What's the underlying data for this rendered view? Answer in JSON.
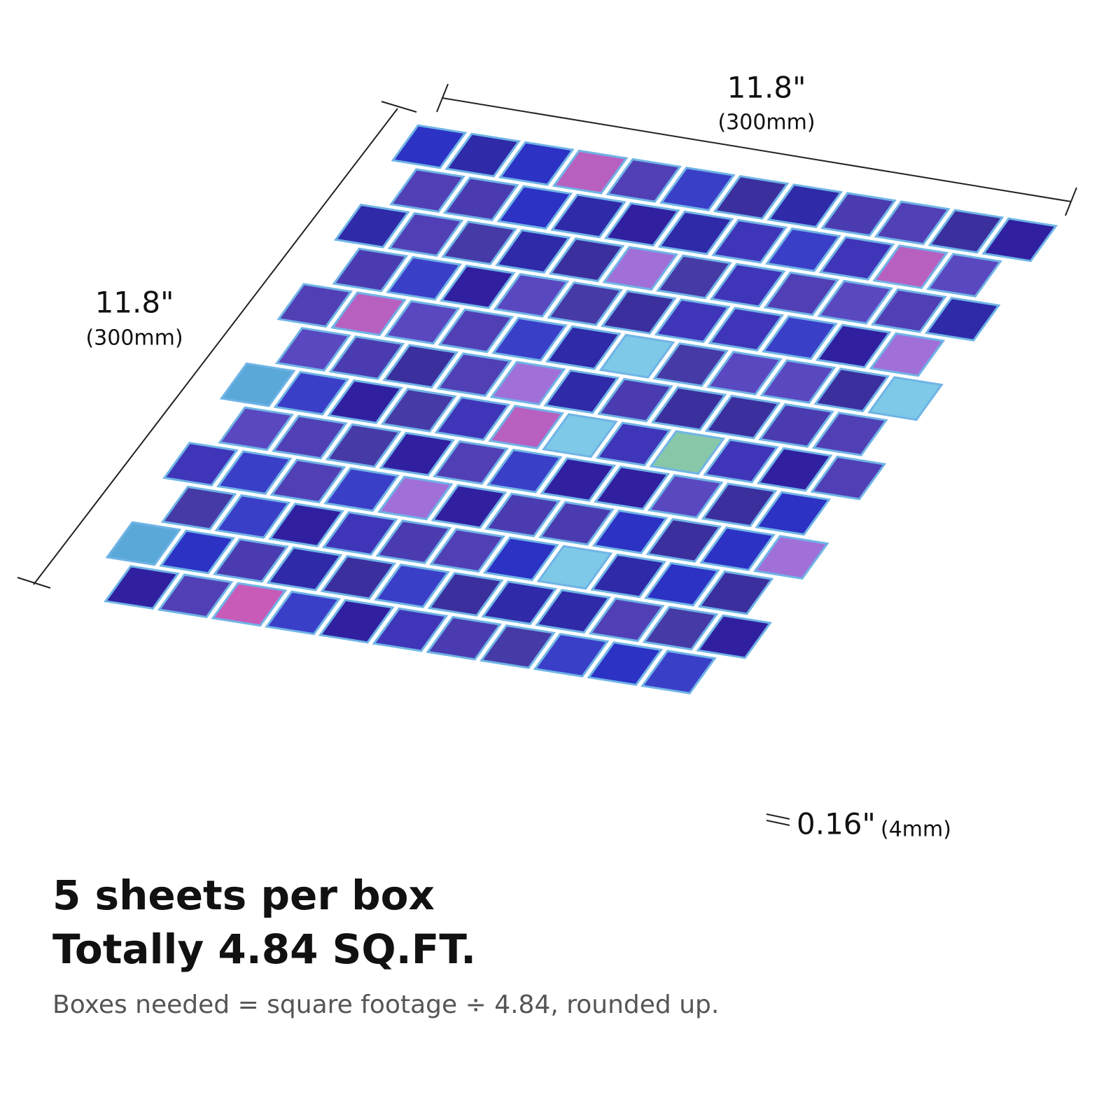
{
  "dimensions": {
    "width": {
      "value": "11.8\"",
      "metric": "(300mm)"
    },
    "length": {
      "value": "11.8\"",
      "metric": "(300mm)"
    },
    "thickness": {
      "value": "0.16\"",
      "metric": "(4mm)"
    }
  },
  "heading": {
    "line1": "5 sheets per box",
    "line2": "Totally 4.84 SQ.FT."
  },
  "note": "Boxes needed = square footage ÷ 4.84, rounded up."
}
